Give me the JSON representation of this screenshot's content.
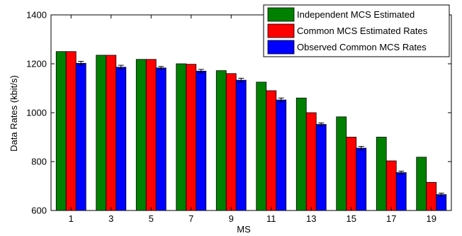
{
  "chart_data": {
    "type": "bar",
    "xlabel": "MS",
    "ylabel": "Data Rates (kbit/s)",
    "ylim": [
      600,
      1400
    ],
    "yticks": [
      600,
      800,
      1000,
      1200,
      1400
    ],
    "categories": [
      "1",
      "3",
      "5",
      "7",
      "9",
      "11",
      "13",
      "15",
      "17",
      "19"
    ],
    "series": [
      {
        "name": "Independent MCS Estimated",
        "color": "#008000",
        "values": [
          1250,
          1235,
          1218,
          1200,
          1172,
          1125,
          1060,
          983,
          900,
          818
        ],
        "errors": null
      },
      {
        "name": "Common MCS Estimated Rates",
        "color": "#ff0000",
        "values": [
          1250,
          1235,
          1218,
          1198,
          1160,
          1090,
          1000,
          900,
          803,
          715
        ],
        "errors": null
      },
      {
        "name": "Observed Common MCS Rates",
        "color": "#0000ff",
        "values": [
          1202,
          1186,
          1183,
          1170,
          1133,
          1052,
          952,
          855,
          755,
          665
        ],
        "errors": [
          8,
          8,
          6,
          7,
          8,
          8,
          6,
          7,
          6,
          6
        ]
      }
    ],
    "legend_position": "top-right",
    "grid": false
  }
}
